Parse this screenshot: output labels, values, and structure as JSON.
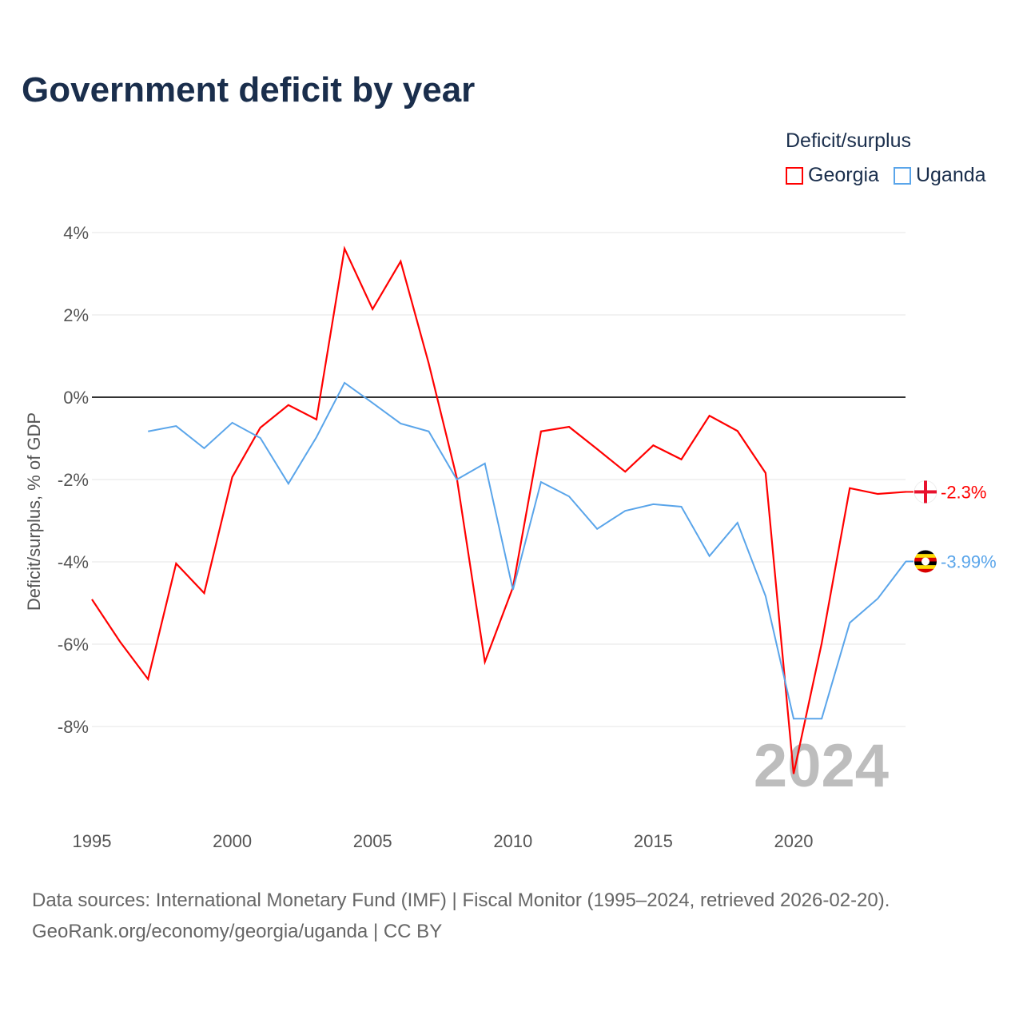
{
  "chart_data": {
    "type": "line",
    "title": "Government deficit by year",
    "ylabel": "Deficit/surplus, % of GDP",
    "xlabel": "",
    "ylim": [
      -10,
      4
    ],
    "xlim": [
      1995,
      2024
    ],
    "yticks": [
      4,
      2,
      0,
      -2,
      -4,
      -6,
      -8
    ],
    "ytick_labels": [
      "4%",
      "2%",
      "0%",
      "-2%",
      "-4%",
      "-6%",
      "-8%"
    ],
    "xticks": [
      1995,
      2000,
      2005,
      2010,
      2015,
      2020
    ],
    "xtick_labels": [
      "1995",
      "2000",
      "2005",
      "2010",
      "2015",
      "2020"
    ],
    "grid": true,
    "legend_title": "Deficit/surplus",
    "legend_position": "top-right",
    "watermark_year": "2024",
    "series": [
      {
        "name": "Georgia",
        "color": "#ff0000",
        "end_label": "-2.3%",
        "x": [
          1995,
          1996,
          1997,
          1998,
          1999,
          2000,
          2001,
          2002,
          2003,
          2004,
          2005,
          2006,
          2007,
          2008,
          2009,
          2010,
          2011,
          2012,
          2013,
          2014,
          2015,
          2016,
          2017,
          2018,
          2019,
          2020,
          2021,
          2022,
          2023,
          2024
        ],
        "values": [
          -4.91,
          -5.94,
          -6.85,
          -4.04,
          -4.76,
          -1.94,
          -0.74,
          -0.19,
          -0.54,
          3.61,
          2.14,
          3.3,
          0.82,
          -1.96,
          -6.43,
          -4.62,
          -0.83,
          -0.72,
          -1.26,
          -1.81,
          -1.17,
          -1.51,
          -0.45,
          -0.82,
          -1.84,
          -9.15,
          -5.98,
          -2.21,
          -2.35,
          -2.3
        ]
      },
      {
        "name": "Uganda",
        "color": "#5aa5ea",
        "end_label": "-3.99%",
        "x": [
          1997,
          1998,
          1999,
          2000,
          2001,
          2002,
          2003,
          2004,
          2005,
          2006,
          2007,
          2008,
          2009,
          2010,
          2011,
          2012,
          2013,
          2014,
          2015,
          2016,
          2017,
          2018,
          2019,
          2020,
          2021,
          2022,
          2023,
          2024
        ],
        "values": [
          -0.83,
          -0.7,
          -1.24,
          -0.62,
          -0.99,
          -2.1,
          -0.97,
          0.35,
          -0.14,
          -0.64,
          -0.83,
          -2.0,
          -1.61,
          -4.68,
          -2.06,
          -2.41,
          -3.2,
          -2.76,
          -2.6,
          -2.66,
          -3.86,
          -3.05,
          -4.83,
          -7.81,
          -7.81,
          -5.48,
          -4.89,
          -3.99
        ]
      }
    ]
  },
  "source_line1": "Data sources: International Monetary Fund (IMF) | Fiscal Monitor (1995–2024, retrieved 2026-02-20).",
  "source_line2": "GeoRank.org/economy/georgia/uganda | CC BY"
}
